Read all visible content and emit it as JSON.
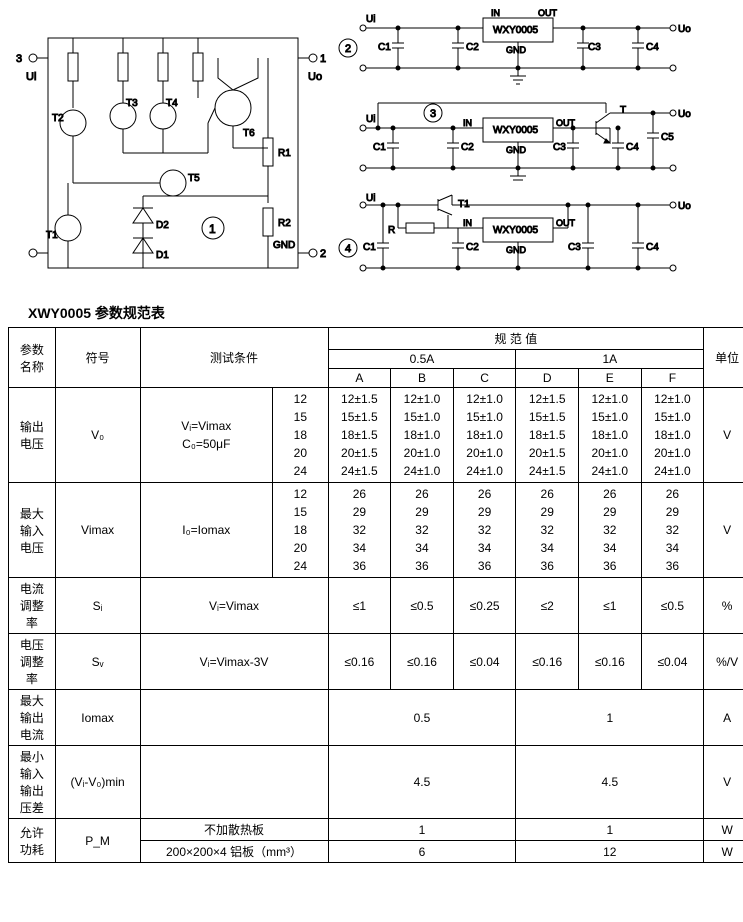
{
  "circuits": {
    "main": {
      "terminals": {
        "t1": "1",
        "t2": "2",
        "t3": "3"
      },
      "labels": {
        "ui": "Ui",
        "uo": "Uo",
        "gnd": "GND"
      },
      "components": [
        "T1",
        "T2",
        "T3",
        "T4",
        "T5",
        "T6",
        "D1",
        "D2",
        "R1",
        "R2"
      ],
      "badge": "1"
    },
    "app2": {
      "labels": {
        "ui": "Ui",
        "uo": "Uo",
        "chip": "WXY0005",
        "in": "IN",
        "out": "OUT",
        "gnd": "GND"
      },
      "caps": [
        "C1",
        "C2",
        "C3",
        "C4"
      ],
      "badge": "2"
    },
    "app3": {
      "labels": {
        "ui": "Ui",
        "uo": "Uo",
        "chip": "WXY0005",
        "in": "IN",
        "out": "OUT",
        "gnd": "GND",
        "t": "T"
      },
      "caps": [
        "C1",
        "C2",
        "C3",
        "C4",
        "C5"
      ],
      "badge": "3"
    },
    "app4": {
      "labels": {
        "ui": "Ui",
        "uo": "Uo",
        "chip": "WXY0005",
        "in": "IN",
        "out": "OUT",
        "gnd": "GND",
        "t1": "T1",
        "r": "R"
      },
      "caps": [
        "C1",
        "C2",
        "C3",
        "C4"
      ],
      "badge": "4"
    }
  },
  "table": {
    "title": "XWY0005 参数规范表",
    "headers": {
      "param_name": "参数\n名称",
      "symbol": "符号",
      "test_cond": "测试条件",
      "spec_range": "规 范 值",
      "unit": "单位",
      "col_05a": "0.5A",
      "col_1a": "1A",
      "subcols": [
        "A",
        "B",
        "C",
        "D",
        "E",
        "F"
      ]
    },
    "rows": {
      "output_voltage": {
        "name": "输出\n电压",
        "symbol": "V₀",
        "cond1": "Vᵢ=Vimax",
        "cond2": "C₀=50μF",
        "voltages": [
          "12",
          "15",
          "18",
          "20",
          "24"
        ],
        "A": [
          "12±1.5",
          "15±1.5",
          "18±1.5",
          "20±1.5",
          "24±1.5"
        ],
        "B": [
          "12±1.0",
          "15±1.0",
          "18±1.0",
          "20±1.0",
          "24±1.0"
        ],
        "C": [
          "12±1.0",
          "15±1.0",
          "18±1.0",
          "20±1.0",
          "24±1.0"
        ],
        "D": [
          "12±1.5",
          "15±1.5",
          "18±1.5",
          "20±1.5",
          "24±1.5"
        ],
        "E": [
          "12±1.0",
          "15±1.0",
          "18±1.0",
          "20±1.0",
          "24±1.0"
        ],
        "F": [
          "12±1.0",
          "15±1.0",
          "18±1.0",
          "20±1.0",
          "24±1.0"
        ],
        "unit": "V"
      },
      "max_input_voltage": {
        "name": "最大\n输入\n电压",
        "symbol": "Vimax",
        "cond": "I₀=Iomax",
        "voltages": [
          "12",
          "15",
          "18",
          "20",
          "24"
        ],
        "vals": [
          "26",
          "29",
          "32",
          "34",
          "36"
        ],
        "unit": "V"
      },
      "current_reg": {
        "name": "电流\n调整\n率",
        "symbol": "Sᵢ",
        "cond": "Vᵢ=Vimax",
        "A": "≤1",
        "B": "≤0.5",
        "C": "≤0.25",
        "D": "≤2",
        "E": "≤1",
        "F": "≤0.5",
        "unit": "%"
      },
      "voltage_reg": {
        "name": "电压\n调整\n率",
        "symbol": "Sᵥ",
        "cond": "Vᵢ=Vimax-3V",
        "A": "≤0.16",
        "B": "≤0.16",
        "C": "≤0.04",
        "D": "≤0.16",
        "E": "≤0.16",
        "F": "≤0.04",
        "unit": "%/V"
      },
      "max_output_current": {
        "name": "最大\n输出\n电流",
        "symbol": "Iomax",
        "v_05a": "0.5",
        "v_1a": "1",
        "unit": "A"
      },
      "min_dropout": {
        "name": "最小\n输入\n输出\n压差",
        "symbol": "(Vᵢ-V₀)min",
        "v_05a": "4.5",
        "v_1a": "4.5",
        "unit": "V"
      },
      "power_diss": {
        "name": "允许\n功耗",
        "symbol": "P_M",
        "cond_noheatsink": "不加散热板",
        "cond_heatsink": "200×200×4 铝板（mm³）",
        "noheatsink_05a": "1",
        "noheatsink_1a": "1",
        "heatsink_05a": "6",
        "heatsink_1a": "12",
        "unit": "W"
      }
    }
  },
  "style": {
    "stroke": "#000000",
    "bg": "#ffffff",
    "line_width": 1,
    "font_size_svg": 11
  }
}
